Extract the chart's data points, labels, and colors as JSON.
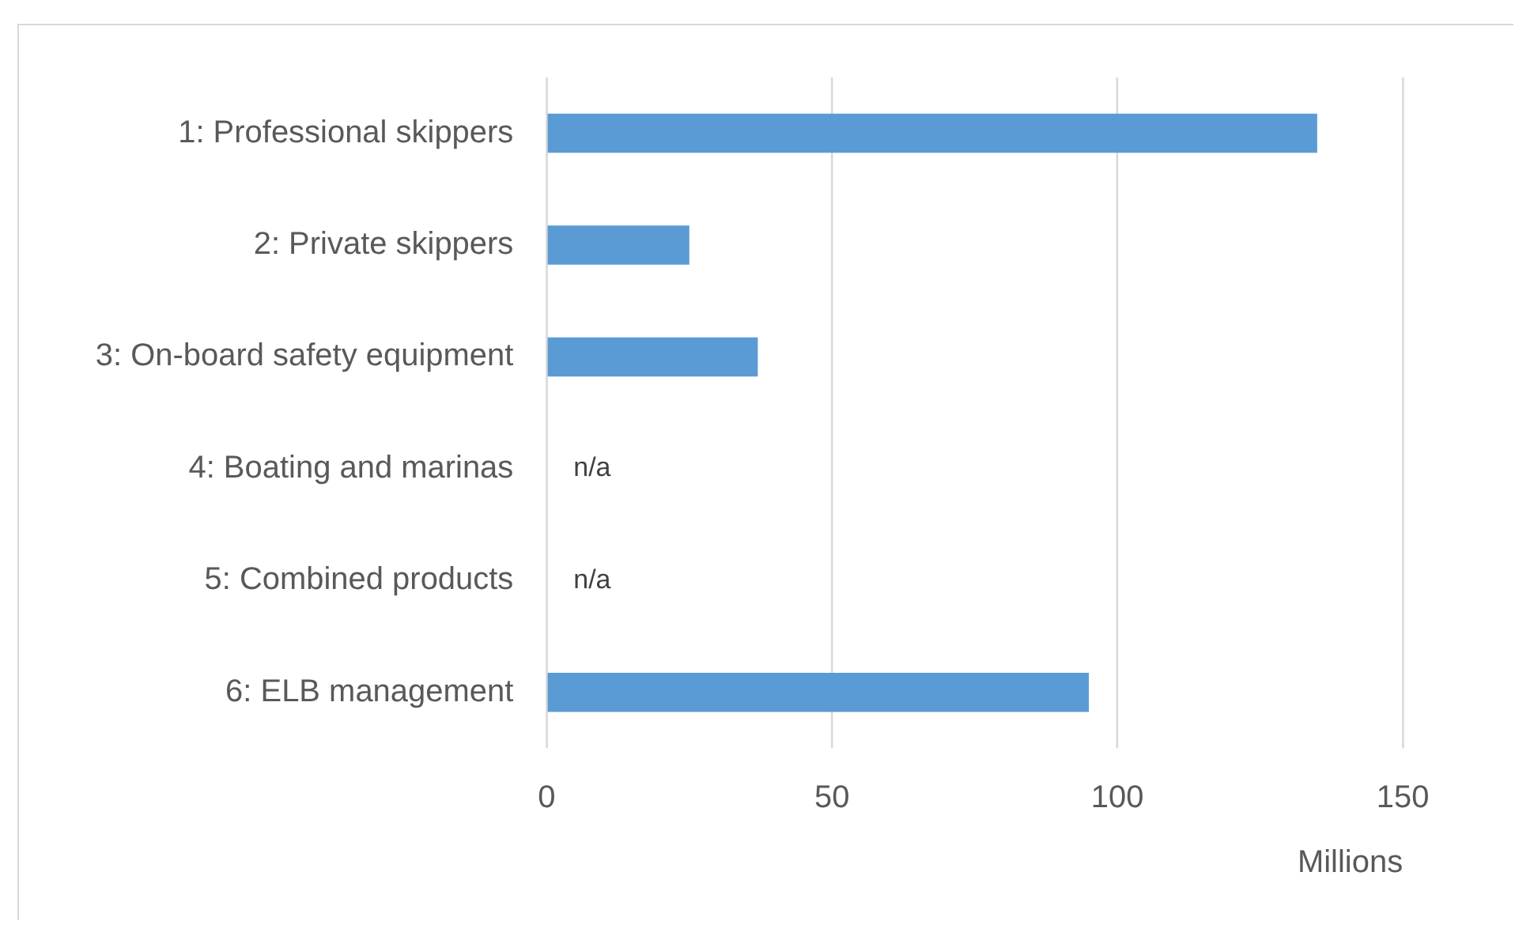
{
  "chart_data": {
    "type": "bar",
    "orientation": "horizontal",
    "categories": [
      "1: Professional skippers",
      "2: Private skippers",
      "3: On-board safety equipment",
      "4: Boating and marinas",
      "5: Combined products",
      "6: ELB management"
    ],
    "values": [
      135,
      25,
      37,
      null,
      null,
      95
    ],
    "value_labels": [
      null,
      null,
      null,
      "n/a",
      "n/a",
      null
    ],
    "color": "#5b9bd5",
    "xlabel": "Millions",
    "xlim": [
      0,
      150
    ],
    "xticks": [
      0,
      50,
      100,
      150
    ],
    "grid": "x"
  }
}
